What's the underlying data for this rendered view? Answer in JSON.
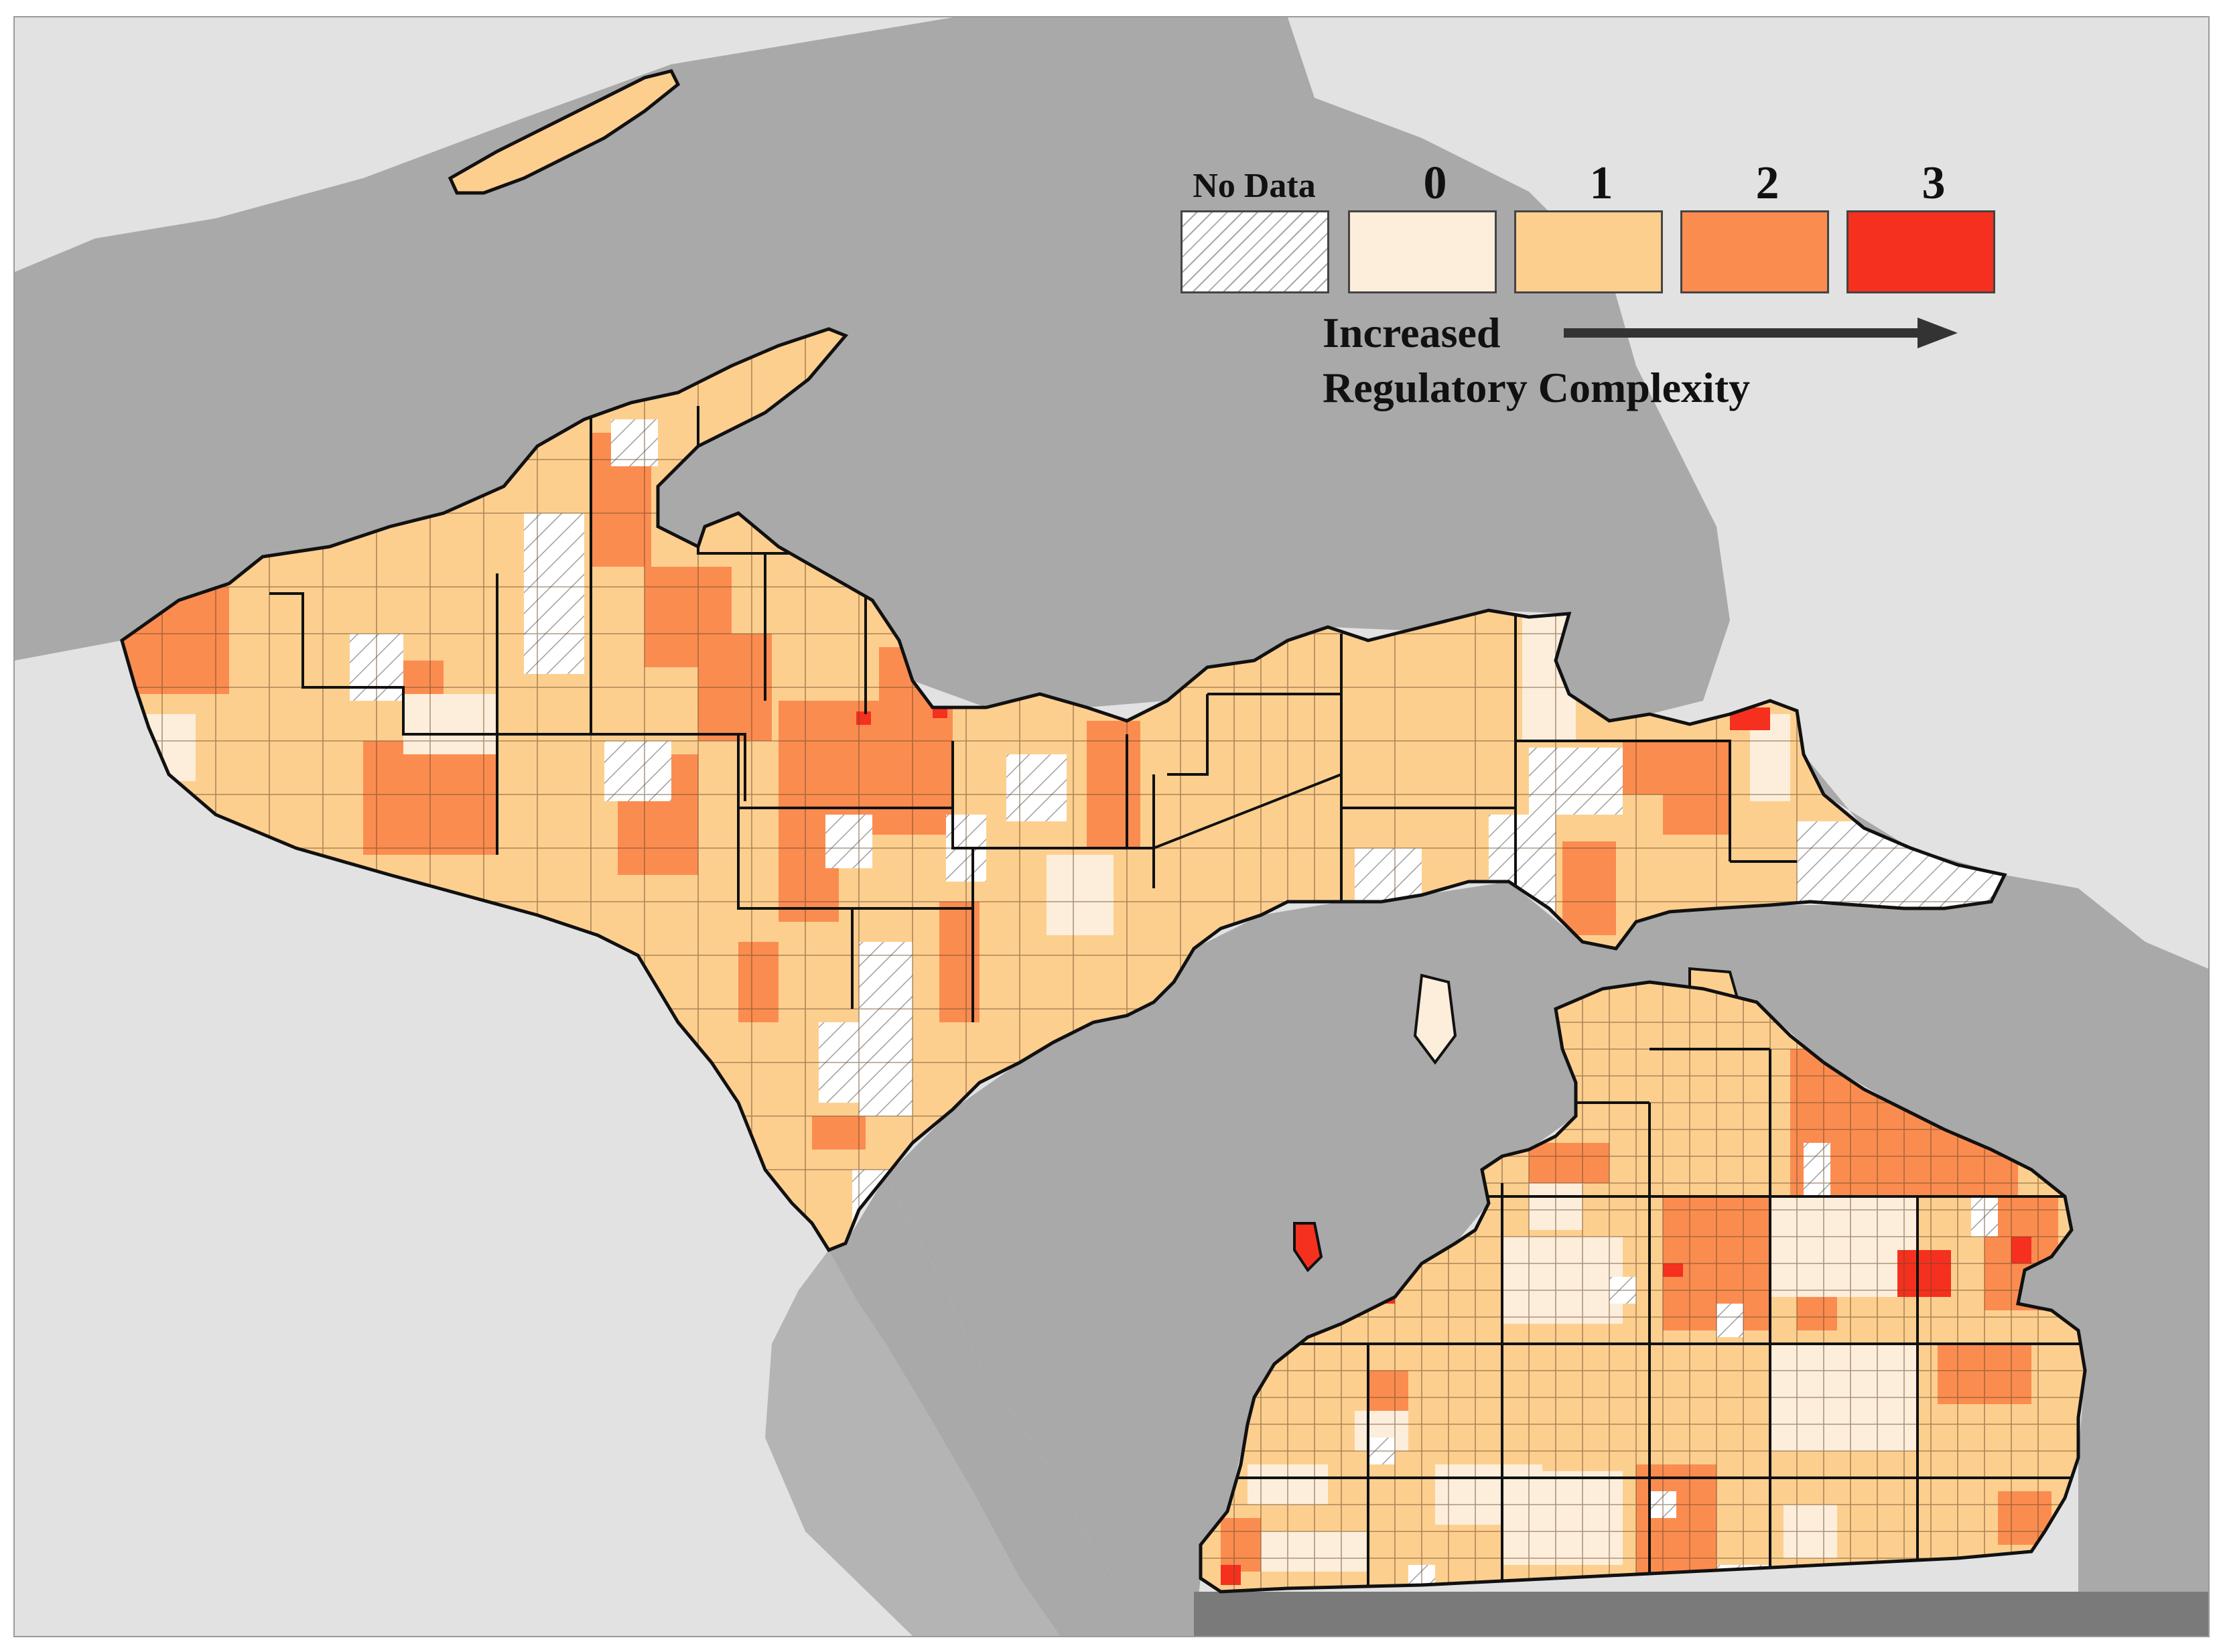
{
  "legend": {
    "categories": [
      {
        "label": "No Data",
        "color": "hatched"
      },
      {
        "label": "0",
        "color": "#fdeedc"
      },
      {
        "label": "1",
        "color": "#fdcf8f"
      },
      {
        "label": "2",
        "color": "#fb8c50"
      },
      {
        "label": "3",
        "color": "#f5301f"
      }
    ],
    "caption_line1": "Increased",
    "caption_line2": "Regulatory Complexity",
    "arrow_color": "#333333"
  },
  "colors": {
    "water": "#a9a9a9",
    "land_outside": "#e2e2e2",
    "indiana_ohio": "#7a7a7a",
    "no_data": "hatched",
    "level_0": "#fdeedc",
    "level_1": "#fdcf8f",
    "level_2": "#fb8c50",
    "level_3": "#f5301f"
  }
}
